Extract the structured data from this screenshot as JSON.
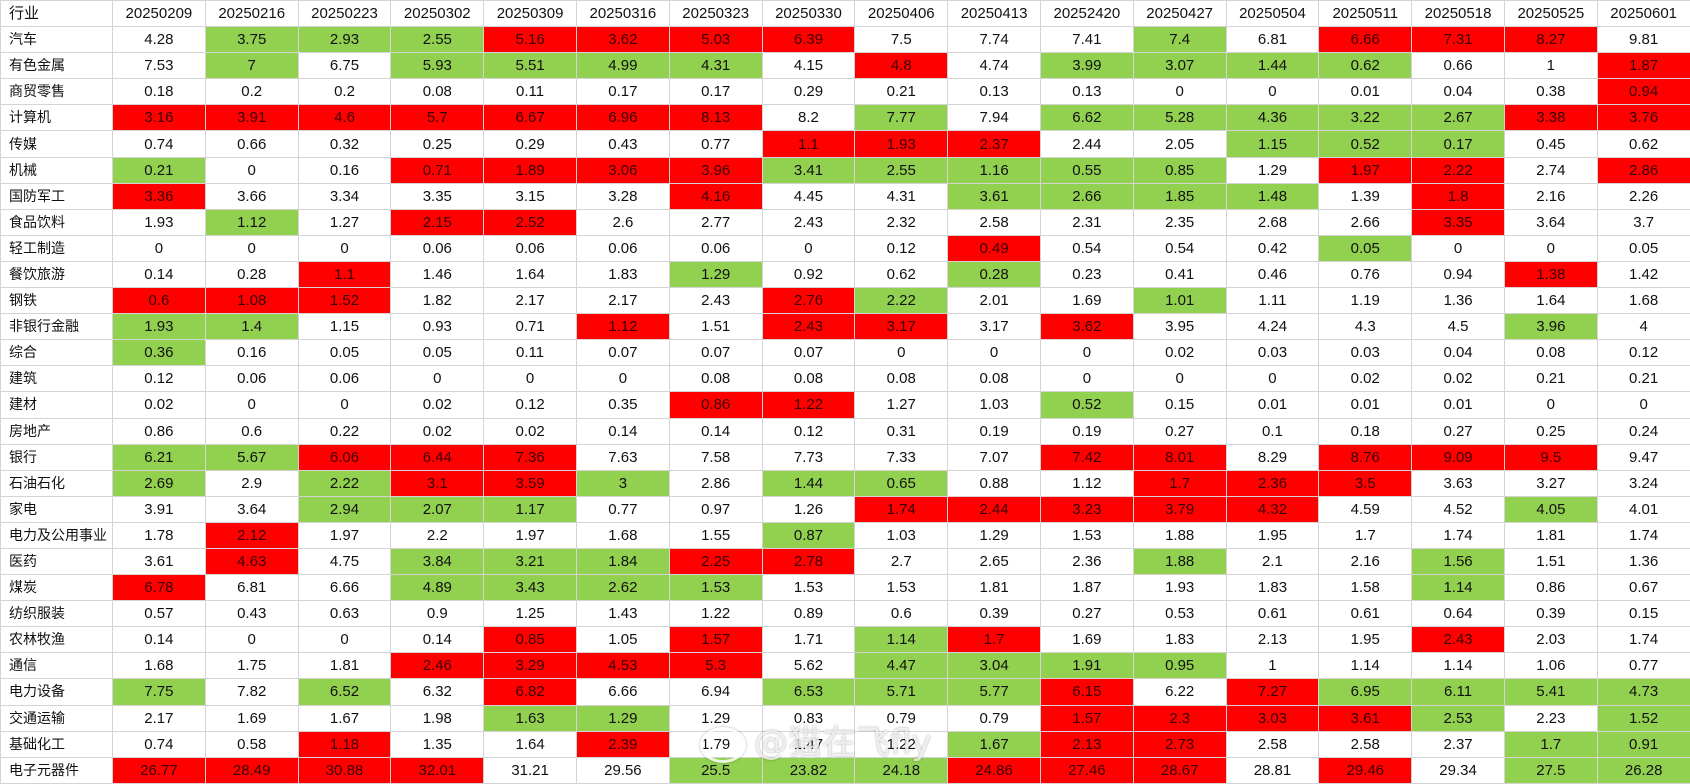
{
  "header": [
    "行业",
    "20250209",
    "20250216",
    "20250223",
    "20250302",
    "20250309",
    "20250316",
    "20250323",
    "20250330",
    "20250406",
    "20250413",
    "20252420",
    "20250427",
    "20250504",
    "20250511",
    "20250518",
    "20250525",
    "20250601"
  ],
  "colors": {
    "red": "#ff0000",
    "green": "#92d050",
    "white": "#ffffff"
  },
  "rows": [
    {
      "name": "汽车",
      "values": [
        "4.28",
        "3.75",
        "2.93",
        "2.55",
        "5.16",
        "3.62",
        "5.03",
        "6.39",
        "7.5",
        "7.74",
        "7.41",
        "7.4",
        "6.81",
        "6.66",
        "7.31",
        "8.27",
        "9.81"
      ],
      "fills": "wggg rrrr wwwg wrrr"
    },
    {
      "name": "有色金属",
      "values": [
        "7.53",
        "7",
        "6.75",
        "5.93",
        "5.51",
        "4.99",
        "4.31",
        "4.15",
        "4.8",
        "4.74",
        "3.99",
        "3.07",
        "1.44",
        "0.62",
        "0.66",
        "1",
        "1.87"
      ],
      "fills": "wgwgggg wrwgggg wwr"
    },
    {
      "name": "商贸零售",
      "values": [
        "0.18",
        "0.2",
        "0.2",
        "0.08",
        "0.11",
        "0.17",
        "0.17",
        "0.29",
        "0.21",
        "0.13",
        "0.13",
        "0",
        "0",
        "0.01",
        "0.04",
        "0.38",
        "0.94"
      ],
      "fills": "wwwwwwwwwwwwwwwwr"
    },
    {
      "name": "计算机",
      "values": [
        "3.16",
        "3.91",
        "4.6",
        "5.7",
        "6.67",
        "6.96",
        "8.13",
        "8.2",
        "7.77",
        "7.94",
        "6.62",
        "5.28",
        "4.36",
        "3.22",
        "2.67",
        "3.38",
        "3.76"
      ],
      "fills": "rrrrrrrwgwgggggrr"
    },
    {
      "name": "传媒",
      "values": [
        "0.74",
        "0.66",
        "0.32",
        "0.25",
        "0.29",
        "0.43",
        "0.77",
        "1.1",
        "1.93",
        "2.37",
        "2.44",
        "2.05",
        "1.15",
        "0.52",
        "0.17",
        "0.45",
        "0.62"
      ],
      "fills": "wwwwwwwrrrwwgggww"
    },
    {
      "name": "机械",
      "values": [
        "0.21",
        "0",
        "0.16",
        "0.71",
        "1.89",
        "3.06",
        "3.96",
        "3.41",
        "2.55",
        "1.16",
        "0.55",
        "0.85",
        "1.29",
        "1.97",
        "2.22",
        "2.74",
        "2.86"
      ],
      "fills": "gwwrrrrgggggwrrwrw"
    },
    {
      "name": "国防军工",
      "values": [
        "3.36",
        "3.66",
        "3.34",
        "3.35",
        "3.15",
        "3.28",
        "4.16",
        "4.45",
        "4.31",
        "3.61",
        "2.66",
        "1.85",
        "1.48",
        "1.39",
        "1.8",
        "2.16",
        "2.26"
      ],
      "fills": "rwwwwwrwwggggwrww"
    },
    {
      "name": "食品饮料",
      "values": [
        "1.93",
        "1.12",
        "1.27",
        "2.15",
        "2.52",
        "2.6",
        "2.77",
        "2.43",
        "2.32",
        "2.58",
        "2.31",
        "2.35",
        "2.68",
        "2.66",
        "3.35",
        "3.64",
        "3.7"
      ],
      "fills": "wgwrrwwwwwwwwwrww"
    },
    {
      "name": "轻工制造",
      "values": [
        "0",
        "0",
        "0",
        "0.06",
        "0.06",
        "0.06",
        "0.06",
        "0",
        "0.12",
        "0.49",
        "0.54",
        "0.54",
        "0.42",
        "0.05",
        "0",
        "0",
        "0.05"
      ],
      "fills": "wwwwwwwwwrwwwgwww"
    },
    {
      "name": "餐饮旅游",
      "values": [
        "0.14",
        "0.28",
        "1.1",
        "1.46",
        "1.64",
        "1.83",
        "1.29",
        "0.92",
        "0.62",
        "0.28",
        "0.23",
        "0.41",
        "0.46",
        "0.76",
        "0.94",
        "1.38",
        "1.42"
      ],
      "fills": "wwrwwwgwwgwwwwwrw"
    },
    {
      "name": "钢铁",
      "values": [
        "0.6",
        "1.08",
        "1.52",
        "1.82",
        "2.17",
        "2.17",
        "2.43",
        "2.76",
        "2.22",
        "2.01",
        "1.69",
        "1.01",
        "1.11",
        "1.19",
        "1.36",
        "1.64",
        "1.68"
      ],
      "fills": "rrrwwwwrgwwgwwwww"
    },
    {
      "name": "非银行金融",
      "values": [
        "1.93",
        "1.4",
        "1.15",
        "0.93",
        "0.71",
        "1.12",
        "1.51",
        "2.43",
        "3.17",
        "3.17",
        "3.62",
        "3.95",
        "4.24",
        "4.3",
        "4.5",
        "3.96",
        "4"
      ],
      "fills": "ggwwwrwrrwrwwwwgw"
    },
    {
      "name": "综合",
      "values": [
        "0.36",
        "0.16",
        "0.05",
        "0.05",
        "0.11",
        "0.07",
        "0.07",
        "0.07",
        "0",
        "0",
        "0",
        "0.02",
        "0.03",
        "0.03",
        "0.04",
        "0.08",
        "0.12"
      ],
      "fills": "gwwwwwwwwwwwwwwww"
    },
    {
      "name": "建筑",
      "values": [
        "0.12",
        "0.06",
        "0.06",
        "0",
        "0",
        "0",
        "0.08",
        "0.08",
        "0.08",
        "0.08",
        "0",
        "0",
        "0",
        "0.02",
        "0.02",
        "0.21",
        "0.21"
      ],
      "fills": "wwwwwwwwwwwwwwwww"
    },
    {
      "name": "建材",
      "values": [
        "0.02",
        "0",
        "0",
        "0.02",
        "0.12",
        "0.35",
        "0.86",
        "1.22",
        "1.27",
        "1.03",
        "0.52",
        "0.15",
        "0.01",
        "0.01",
        "0.01",
        "0",
        "0"
      ],
      "fills": "wwwwwwrrwwgwwwwww"
    },
    {
      "name": "房地产",
      "values": [
        "0.86",
        "0.6",
        "0.22",
        "0.02",
        "0.02",
        "0.14",
        "0.14",
        "0.12",
        "0.31",
        "0.19",
        "0.19",
        "0.27",
        "0.1",
        "0.18",
        "0.27",
        "0.25",
        "0.24"
      ],
      "fills": "wwwwwwwwwwwwwwwww"
    },
    {
      "name": "银行",
      "values": [
        "6.21",
        "5.67",
        "6.06",
        "6.44",
        "7.36",
        "7.63",
        "7.58",
        "7.73",
        "7.33",
        "7.07",
        "7.42",
        "8.01",
        "8.29",
        "8.76",
        "9.09",
        "9.5",
        "9.47"
      ],
      "fills": "ggrrrwwwwwrrwrrrw"
    },
    {
      "name": "石油石化",
      "values": [
        "2.69",
        "2.9",
        "2.22",
        "3.1",
        "3.59",
        "3",
        "2.86",
        "1.44",
        "0.65",
        "0.88",
        "1.12",
        "1.7",
        "2.36",
        "3.5",
        "3.63",
        "3.27",
        "3.24"
      ],
      "fills": "gwgrrgwggwwrrrwww"
    },
    {
      "name": "家电",
      "values": [
        "3.91",
        "3.64",
        "2.94",
        "2.07",
        "1.17",
        "0.77",
        "0.97",
        "1.26",
        "1.74",
        "2.44",
        "3.23",
        "3.79",
        "4.32",
        "4.59",
        "4.52",
        "4.05",
        "4.01"
      ],
      "fills": "wwgggwwwrrrrrwwgw"
    },
    {
      "name": "电力及公用事业",
      "values": [
        "1.78",
        "2.12",
        "1.97",
        "2.2",
        "1.97",
        "1.68",
        "1.55",
        "0.87",
        "1.03",
        "1.29",
        "1.53",
        "1.88",
        "1.95",
        "1.7",
        "1.74",
        "1.81",
        "1.74"
      ],
      "fills": "wrwwwwwgwwwwwwwww"
    },
    {
      "name": "医药",
      "values": [
        "3.61",
        "4.63",
        "4.75",
        "3.84",
        "3.21",
        "1.84",
        "2.25",
        "2.78",
        "2.7",
        "2.65",
        "2.36",
        "1.88",
        "2.1",
        "2.16",
        "1.56",
        "1.51",
        "1.36"
      ],
      "fills": "wrwgggrrwwwgwwgww"
    },
    {
      "name": "煤炭",
      "values": [
        "6.78",
        "6.81",
        "6.66",
        "4.89",
        "3.43",
        "2.62",
        "1.53",
        "1.53",
        "1.53",
        "1.81",
        "1.87",
        "1.93",
        "1.83",
        "1.58",
        "1.14",
        "0.86",
        "0.67"
      ],
      "fills": "rwwggggwwwwwwwgww"
    },
    {
      "name": "纺织服装",
      "values": [
        "0.57",
        "0.43",
        "0.63",
        "0.9",
        "1.25",
        "1.43",
        "1.22",
        "0.89",
        "0.6",
        "0.39",
        "0.27",
        "0.53",
        "0.61",
        "0.61",
        "0.64",
        "0.39",
        "0.15"
      ],
      "fills": "wwwwwwwwwwwwwwwww"
    },
    {
      "name": "农林牧渔",
      "values": [
        "0.14",
        "0",
        "0",
        "0.14",
        "0.85",
        "1.05",
        "1.57",
        "1.71",
        "1.14",
        "1.7",
        "1.69",
        "1.83",
        "2.13",
        "1.95",
        "2.43",
        "2.03",
        "1.74"
      ],
      "fills": "wwwwrwrwgrwwwwrww"
    },
    {
      "name": "通信",
      "values": [
        "1.68",
        "1.75",
        "1.81",
        "2.46",
        "3.29",
        "4.53",
        "5.3",
        "5.62",
        "4.47",
        "3.04",
        "1.91",
        "0.95",
        "1",
        "1.14",
        "1.14",
        "1.06",
        "0.77"
      ],
      "fills": "wwwrrrrwgggg wwwww"
    },
    {
      "name": "电力设备",
      "values": [
        "7.75",
        "7.82",
        "6.52",
        "6.32",
        "6.82",
        "6.66",
        "6.94",
        "6.53",
        "5.71",
        "5.77",
        "6.15",
        "6.22",
        "7.27",
        "6.95",
        "6.11",
        "5.41",
        "4.73"
      ],
      "fills": "gwgwrwwgggrwrgggg"
    },
    {
      "name": "交通运输",
      "values": [
        "2.17",
        "1.69",
        "1.67",
        "1.98",
        "1.63",
        "1.29",
        "1.29",
        "0.83",
        "0.79",
        "0.79",
        "1.57",
        "2.3",
        "3.03",
        "3.61",
        "2.53",
        "2.23",
        "1.52"
      ],
      "fills": "wwwwggwwwwrrrrgwg"
    },
    {
      "name": "基础化工",
      "values": [
        "0.74",
        "0.58",
        "1.18",
        "1.35",
        "1.64",
        "2.39",
        "1.79",
        "1.47",
        "1.22",
        "1.67",
        "2.13",
        "2.73",
        "2.58",
        "2.58",
        "2.37",
        "1.7",
        "0.91"
      ],
      "fills": "wwrwwrwwwgrrwwwgg"
    },
    {
      "name": "电子元器件",
      "values": [
        "26.77",
        "28.49",
        "30.88",
        "32.01",
        "31.21",
        "29.56",
        "25.5",
        "23.82",
        "24.18",
        "24.86",
        "27.46",
        "28.67",
        "28.81",
        "29.46",
        "29.34",
        "27.5",
        "26.28"
      ],
      "fills": "rrrrwwgggrrrwrwgg"
    }
  ],
  "watermark": {
    "text": "@猫在飞fly",
    "logo": "weibo-logo-icon"
  }
}
